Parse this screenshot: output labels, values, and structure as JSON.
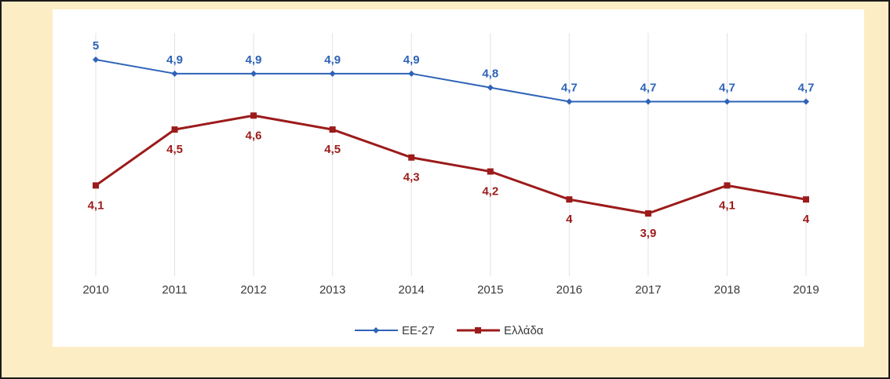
{
  "chart_data": {
    "type": "line",
    "categories": [
      "2010",
      "2011",
      "2012",
      "2013",
      "2014",
      "2015",
      "2016",
      "2017",
      "2018",
      "2019"
    ],
    "series": [
      {
        "name": "ΕΕ-27",
        "color": "#2e63b8",
        "marker": "diamond",
        "values": [
          5,
          4.9,
          4.9,
          4.9,
          4.9,
          4.8,
          4.7,
          4.7,
          4.7,
          4.7
        ],
        "labels": [
          "5",
          "4,9",
          "4,9",
          "4,9",
          "4,9",
          "4,8",
          "4,7",
          "4,7",
          "4,7",
          "4,7"
        ],
        "label_position": "above"
      },
      {
        "name": "Ελλάδα",
        "color": "#9c1b1b",
        "marker": "square",
        "values": [
          4.1,
          4.5,
          4.6,
          4.5,
          4.3,
          4.2,
          4,
          3.9,
          4.1,
          4
        ],
        "labels": [
          "4,1",
          "4,5",
          "4,6",
          "4,5",
          "4,3",
          "4,2",
          "4",
          "3,9",
          "4,1",
          "4"
        ],
        "label_position": "below"
      }
    ],
    "grid": "vertical",
    "legend_position": "bottom"
  },
  "colors": {
    "background": "#fdedc5",
    "panel": "#ffffff",
    "gridline": "#e3e3e3"
  }
}
